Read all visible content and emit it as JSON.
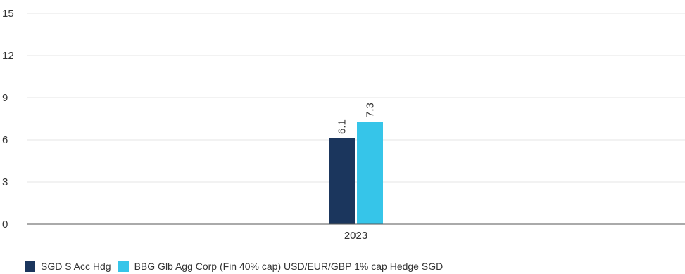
{
  "chart_data": {
    "type": "bar",
    "categories": [
      "2023"
    ],
    "series": [
      {
        "name": "SGD S Acc Hdg",
        "values": [
          6.1
        ],
        "color": "#1b365d"
      },
      {
        "name": "BBG Glb Agg Corp (Fin 40% cap) USD/EUR/GBP 1% cap Hedge SGD",
        "values": [
          7.3
        ],
        "color": "#36c5e9"
      }
    ],
    "yticks": [
      0,
      3,
      6,
      9,
      12,
      15
    ],
    "ylim": [
      0,
      15
    ],
    "grid": true,
    "legend_position": "bottom-left"
  }
}
